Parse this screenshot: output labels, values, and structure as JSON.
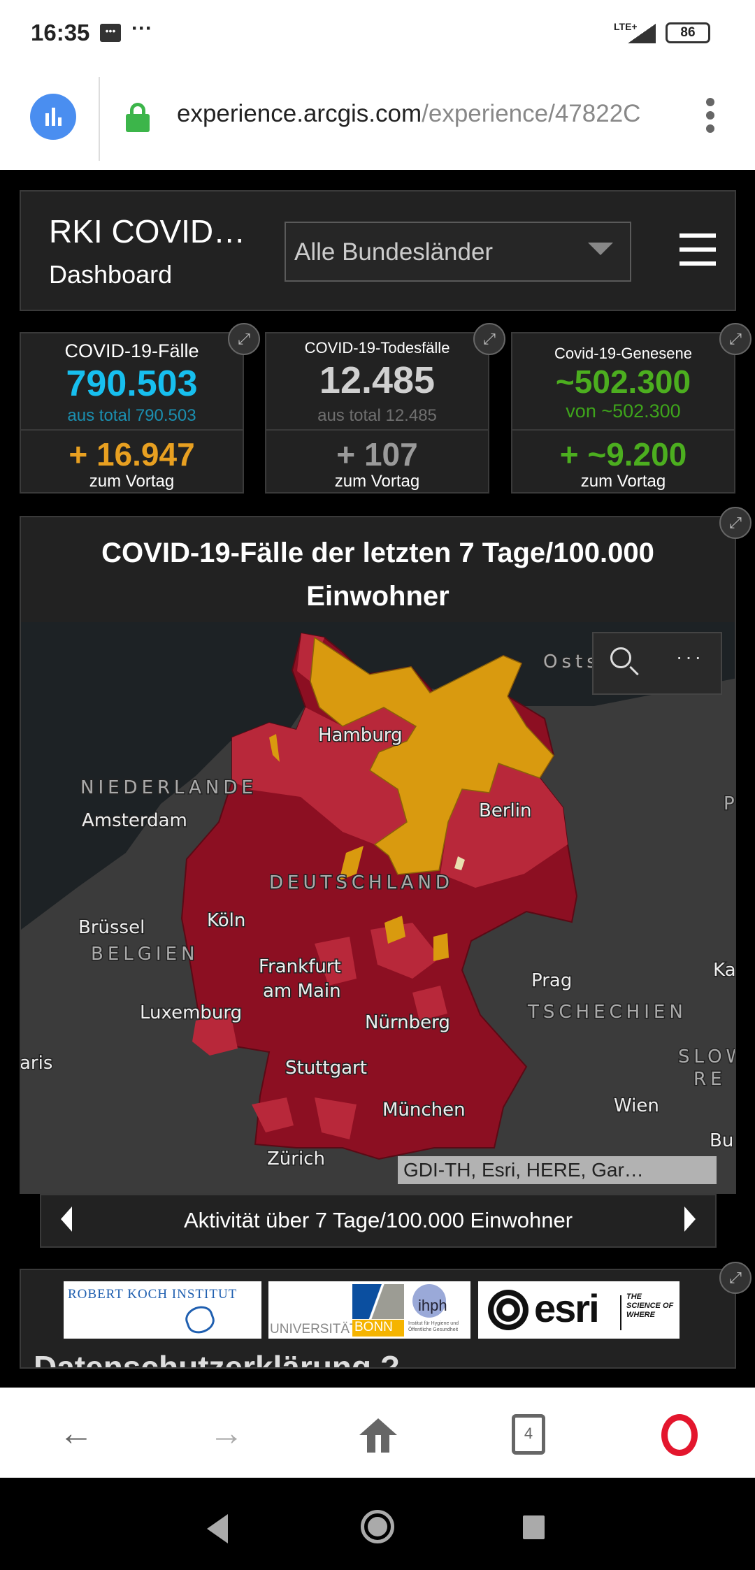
{
  "status_bar": {
    "time": "16:35",
    "network": "LTE+",
    "battery": "86"
  },
  "browser": {
    "url_host": "experience.arcgis.com",
    "url_path": "/experience/47822C",
    "tab_count": "4"
  },
  "header": {
    "title": "RKI COVID…",
    "subtitle": "Dashboard",
    "dropdown_value": "Alle Bundesländer"
  },
  "stats": [
    {
      "title": "COVID-19-Fälle",
      "value": "790.503",
      "sub": "aus total 790.503",
      "delta": "+ 16.947",
      "delta_label": "zum Vortag",
      "color": "#17bfef",
      "sub_color": "#1b8fb0",
      "delta_color": "#e8a021"
    },
    {
      "title": "COVID-19-Todesfälle",
      "value": "12.485",
      "sub": "aus total 12.485",
      "delta": "+ 107",
      "delta_label": "zum Vortag",
      "color": "#d0d0d0",
      "sub_color": "#6f6f6f",
      "delta_color": "#9a9a9a"
    },
    {
      "title": "Covid-19-Genesene",
      "value": "~502.300",
      "sub": "von ~502.300",
      "delta": "+ ~9.200",
      "delta_label": "zum Vortag",
      "color": "#4cae1f",
      "sub_color": "#3ea41b",
      "delta_color": "#4cae1f"
    }
  ],
  "map": {
    "title_line1": "COVID-19-Fälle der letzten 7 Tage/100.000",
    "title_line2": "Einwohner",
    "labels": {
      "hamburg": "Hamburg",
      "niederlande": "NIEDERLANDE",
      "amsterdam": "Amsterdam",
      "berlin": "Berlin",
      "deutschland": "DEUTSCHLAND",
      "bruessel": "Brüssel",
      "belgien": "BELGIEN",
      "koeln": "Köln",
      "frankfurt1": "Frankfurt",
      "frankfurt2": "am Main",
      "prag": "Prag",
      "tschechien": "TSCHECHIEN",
      "luxemburg": "Luxemburg",
      "nuernberg": "Nürnberg",
      "paris": "aris",
      "slow": "SLOW",
      "re": "RE",
      "stuttgart": "Stuttgart",
      "muenchen": "München",
      "wien": "Wien",
      "zuerich": "Zürich",
      "ka": "Ka",
      "p": "P",
      "bu": "Bu",
      "ostsee": "Osts"
    },
    "attribution": "GDI-TH, Esri, HERE, Gar…",
    "colors": {
      "high": "#8c0f22",
      "mid": "#b8283a",
      "low": "#d99a0f",
      "water": "#1d2225",
      "land": "#3b3b3b"
    }
  },
  "pager": {
    "label": "Aktivität über 7 Tage/100.000 Einwohner"
  },
  "logos": {
    "rki": "ROBERT KOCH INSTITUT",
    "bonn_a": "UNIVERSITÄT",
    "bonn_b": "BONN",
    "ihph": "ihph",
    "ihph_sub": "Institut für Hygiene und Öffentliche Gesundheit",
    "esri": "esri",
    "esri_tag": "THE SCIENCE OF WHERE"
  },
  "footer_heading": "Datenschutzerklärung ?"
}
